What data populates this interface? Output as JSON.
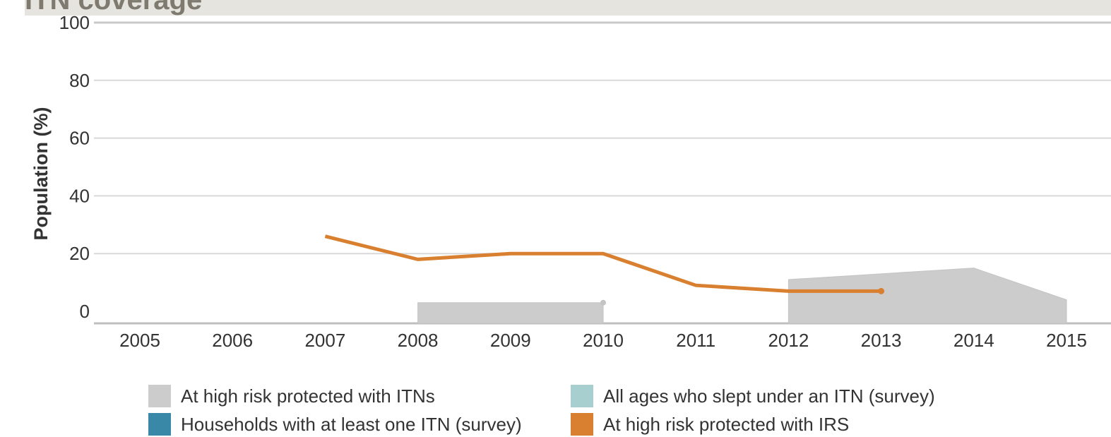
{
  "header": {
    "title": "ITN coverage"
  },
  "chart_data": {
    "type": "line",
    "ylabel": "Population (%)",
    "xlabel": "",
    "ylim": [
      0,
      100
    ],
    "yticks": [
      0,
      20,
      40,
      60,
      80,
      100
    ],
    "categories": [
      "2005",
      "2006",
      "2007",
      "2008",
      "2009",
      "2010",
      "2011",
      "2012",
      "2013",
      "2014",
      "2015"
    ],
    "grid": true,
    "legend_position": "bottom",
    "series": [
      {
        "name": "At high risk protected with ITNs",
        "kind": "area",
        "color": "#cccccc",
        "segments": [
          {
            "x": [
              "2008",
              "2009",
              "2010"
            ],
            "values": [
              3,
              3,
              3
            ]
          },
          {
            "x": [
              "2012",
              "2013",
              "2014",
              "2015"
            ],
            "values": [
              11,
              13,
              15,
              4
            ]
          }
        ]
      },
      {
        "name": "All ages who slept under an ITN (survey)",
        "kind": "point",
        "color": "#a8cfcf",
        "segments": []
      },
      {
        "name": "Households with at least one ITN (survey)",
        "kind": "point",
        "color": "#3a88a8",
        "segments": []
      },
      {
        "name": "At high risk protected with IRS",
        "kind": "line",
        "color": "#d98030",
        "segments": [
          {
            "x": [
              "2007",
              "2008",
              "2009",
              "2010",
              "2011",
              "2012",
              "2013"
            ],
            "values": [
              26,
              18,
              20,
              20,
              9,
              7,
              7
            ]
          }
        ]
      }
    ]
  }
}
